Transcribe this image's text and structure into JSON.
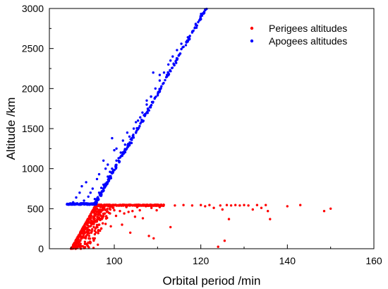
{
  "chart_data": {
    "type": "scatter",
    "title": "",
    "xlabel": "Orbital period /min",
    "ylabel": "Altitude /km",
    "xlim": [
      85,
      160
    ],
    "ylim": [
      0,
      3000
    ],
    "x_ticks": [
      100,
      120,
      140,
      160
    ],
    "y_ticks": [
      0,
      500,
      1000,
      1500,
      2000,
      2500,
      3000
    ],
    "grid": false,
    "legend_position": "top-right",
    "series": [
      {
        "name": "Perigees altitudes",
        "color": "#ff0000",
        "points": [
          [
            90.0,
            0
          ],
          [
            90.8,
            60
          ],
          [
            91.5,
            120
          ],
          [
            92.0,
            180
          ],
          [
            92.6,
            230
          ],
          [
            93.1,
            290
          ],
          [
            93.7,
            340
          ],
          [
            94.2,
            400
          ],
          [
            94.8,
            450
          ],
          [
            95.3,
            500
          ],
          [
            95.7,
            545
          ],
          [
            90.4,
            20
          ],
          [
            91.2,
            80
          ],
          [
            92.3,
            150
          ],
          [
            93.4,
            260
          ],
          [
            94.5,
            370
          ],
          [
            95.0,
            470
          ],
          [
            92.5,
            30
          ],
          [
            93.2,
            60
          ],
          [
            93.8,
            40
          ],
          [
            94.5,
            80
          ],
          [
            95.2,
            10
          ],
          [
            96.2,
            50
          ],
          [
            93.4,
            130
          ],
          [
            94.2,
            160
          ],
          [
            94.7,
            200
          ],
          [
            95.1,
            130
          ],
          [
            95.5,
            180
          ],
          [
            95.9,
            270
          ],
          [
            96.0,
            500
          ],
          [
            96.4,
            470
          ],
          [
            96.8,
            520
          ],
          [
            97.2,
            380
          ],
          [
            97.5,
            490
          ],
          [
            98.0,
            310
          ],
          [
            98.3,
            460
          ],
          [
            98.6,
            530
          ],
          [
            99.0,
            440
          ],
          [
            99.2,
            280
          ],
          [
            99.6,
            520
          ],
          [
            100.0,
            480
          ],
          [
            100.4,
            410
          ],
          [
            100.8,
            540
          ],
          [
            101.3,
            470
          ],
          [
            101.8,
            300
          ],
          [
            102.3,
            440
          ],
          [
            102.8,
            520
          ],
          [
            103.3,
            460
          ],
          [
            103.7,
            200
          ],
          [
            104.2,
            470
          ],
          [
            104.8,
            400
          ],
          [
            105.3,
            520
          ],
          [
            105.9,
            480
          ],
          [
            106.6,
            380
          ],
          [
            107.3,
            530
          ],
          [
            108.0,
            160
          ],
          [
            108.6,
            510
          ],
          [
            109.1,
            130
          ],
          [
            109.8,
            480
          ],
          [
            110.5,
            520
          ],
          [
            113.0,
            270
          ],
          [
            114.0,
            540
          ],
          [
            116.0,
            545
          ],
          [
            118.0,
            540
          ],
          [
            120.0,
            545
          ],
          [
            121.0,
            530
          ],
          [
            122.0,
            545
          ],
          [
            123.0,
            510
          ],
          [
            124.0,
            25
          ],
          [
            124.5,
            540
          ],
          [
            125.0,
            490
          ],
          [
            125.5,
            100
          ],
          [
            126.0,
            545
          ],
          [
            126.5,
            370
          ],
          [
            127.0,
            540
          ],
          [
            128.0,
            545
          ],
          [
            129.0,
            540
          ],
          [
            130.0,
            545
          ],
          [
            131.0,
            540
          ],
          [
            132.0,
            490
          ],
          [
            133.0,
            545
          ],
          [
            134.0,
            510
          ],
          [
            135.0,
            545
          ],
          [
            135.5,
            470
          ],
          [
            136.0,
            370
          ],
          [
            140.0,
            530
          ],
          [
            143.0,
            545
          ],
          [
            148.5,
            470
          ],
          [
            150.0,
            500
          ]
        ],
        "plateau": {
          "x_start": 95.7,
          "x_end": 111.5,
          "y": 550
        }
      },
      {
        "name": "Apogees altitudes",
        "color": "#0000ff",
        "points": [
          [
            89.5,
            550
          ],
          [
            90.5,
            560
          ],
          [
            91.5,
            560
          ],
          [
            92.5,
            555
          ],
          [
            93.5,
            560
          ],
          [
            94.5,
            560
          ],
          [
            95.5,
            570
          ],
          [
            96.5,
            700
          ],
          [
            97.5,
            800
          ],
          [
            98.5,
            900
          ],
          [
            99.5,
            1000
          ],
          [
            100.5,
            1100
          ],
          [
            101.5,
            1200
          ],
          [
            102.5,
            1300
          ],
          [
            103.5,
            1400
          ],
          [
            104.5,
            1500
          ],
          [
            105.5,
            1600
          ],
          [
            106.5,
            1700
          ],
          [
            107.5,
            1800
          ],
          [
            108.5,
            1900
          ],
          [
            109.5,
            2000
          ],
          [
            110.5,
            2100
          ],
          [
            111.5,
            2200
          ],
          [
            112.5,
            2300
          ],
          [
            113.5,
            2400
          ],
          [
            114.5,
            2480
          ],
          [
            115.5,
            2560
          ],
          [
            117.0,
            2640
          ],
          [
            118.0,
            2700
          ],
          [
            119.0,
            2760
          ],
          [
            120.0,
            2870
          ],
          [
            120.5,
            2940
          ],
          [
            121.0,
            2990
          ],
          [
            90.5,
            580
          ],
          [
            91.2,
            640
          ],
          [
            92.0,
            700
          ],
          [
            92.5,
            780
          ],
          [
            93.0,
            600
          ],
          [
            93.5,
            830
          ],
          [
            94.0,
            650
          ],
          [
            94.5,
            700
          ],
          [
            95.0,
            750
          ],
          [
            95.5,
            620
          ],
          [
            96.0,
            870
          ],
          [
            96.5,
            930
          ],
          [
            97.0,
            760
          ],
          [
            97.5,
            1100
          ],
          [
            98.0,
            1000
          ],
          [
            98.5,
            1050
          ],
          [
            99.0,
            960
          ],
          [
            99.5,
            1380
          ],
          [
            100.0,
            1230
          ],
          [
            100.5,
            1250
          ],
          [
            101.0,
            1130
          ],
          [
            102.0,
            1350
          ],
          [
            103.0,
            1450
          ],
          [
            104.0,
            1320
          ],
          [
            105.0,
            1580
          ],
          [
            106.0,
            1640
          ],
          [
            107.5,
            1850
          ],
          [
            108.5,
            1900
          ],
          [
            109.0,
            2200
          ],
          [
            110.5,
            2170
          ],
          [
            113.0,
            2350
          ],
          [
            115.0,
            2420
          ]
        ],
        "line": {
          "x_start": 95.5,
          "y_start": 550,
          "x_end": 121.0,
          "y_end": 2990
        },
        "baseline": {
          "x_start": 89.0,
          "x_end": 95.5,
          "y": 550
        }
      }
    ]
  }
}
